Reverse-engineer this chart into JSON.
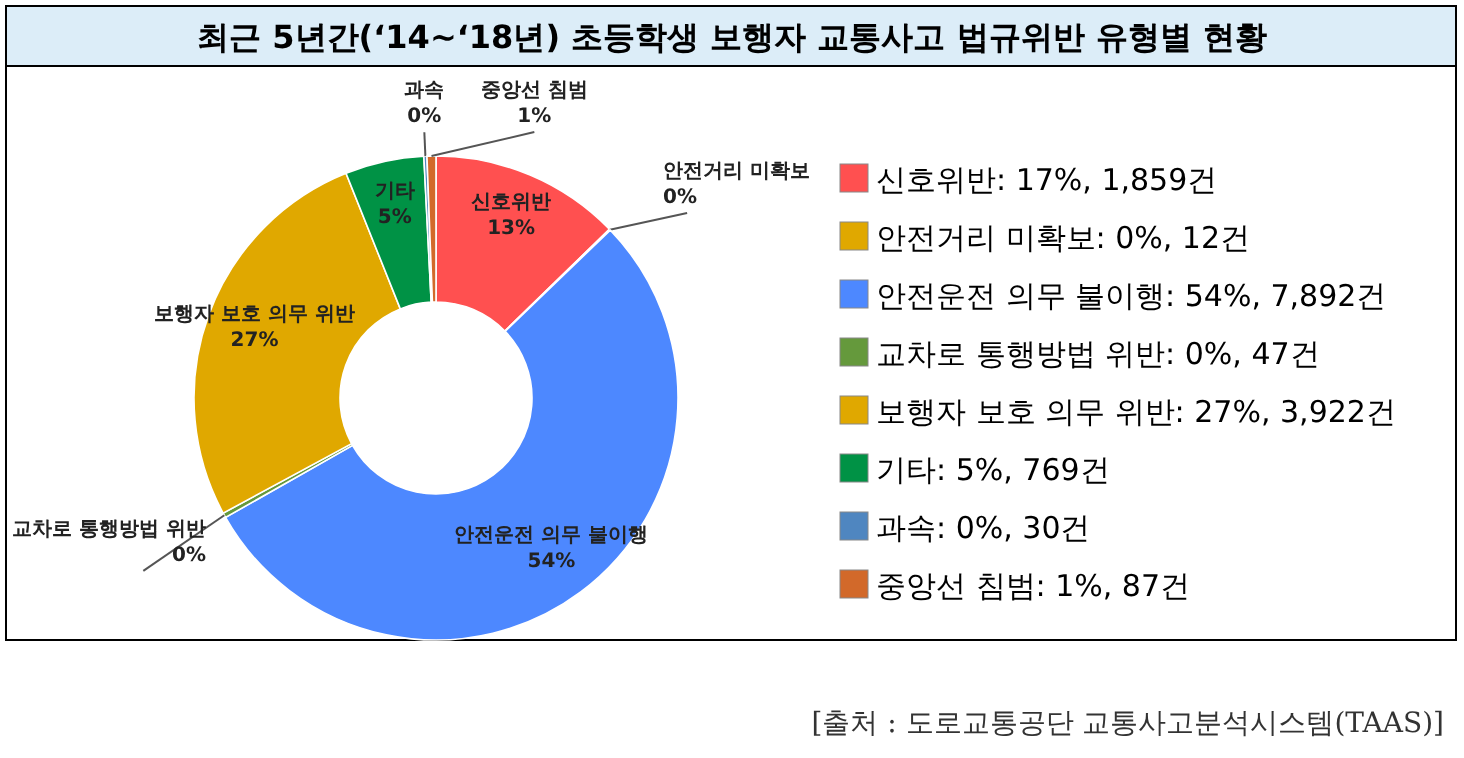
{
  "chart_data": {
    "type": "donut",
    "title": "최근 5년간(‘14~‘18년) 초등학생 보행자 교통사고 법규위반 유형별 현황",
    "categories": [
      "신호위반: 17%, 1,859건",
      "안전거리 미확보: 0%, 12건",
      "안전운전 의무 불이행: 54%, 7,892건",
      "교차로 통행방법 위반: 0%, 47건",
      "보행자 보호 의무 위반: 27%, 3,922건",
      "기타: 5%, 769건",
      "과속: 0%, 30건",
      "중앙선 침범: 1%, 87건"
    ],
    "values": [
      1859,
      12,
      7892,
      47,
      3922,
      769,
      30,
      87
    ],
    "colors": [
      "#ff5050",
      "#e0a800",
      "#4d88ff",
      "#65993c",
      "#e0a800",
      "#009245",
      "#4f86c0",
      "#d2692a"
    ],
    "value_labels": [
      "신호위반\n13%",
      "안전거리 미확보\n0%",
      "안전운전 의무 불이행\n54%",
      "교차로 통행방법 위반\n0%",
      "보행자 보호 의무 위반\n27%",
      "기타\n5%",
      "과속\n0%",
      "중앙선 침범\n1%"
    ],
    "legend": "right",
    "annotations": [
      "[출처 : 도로교통공단 교통사고분석시스템(TAAS)]"
    ]
  }
}
